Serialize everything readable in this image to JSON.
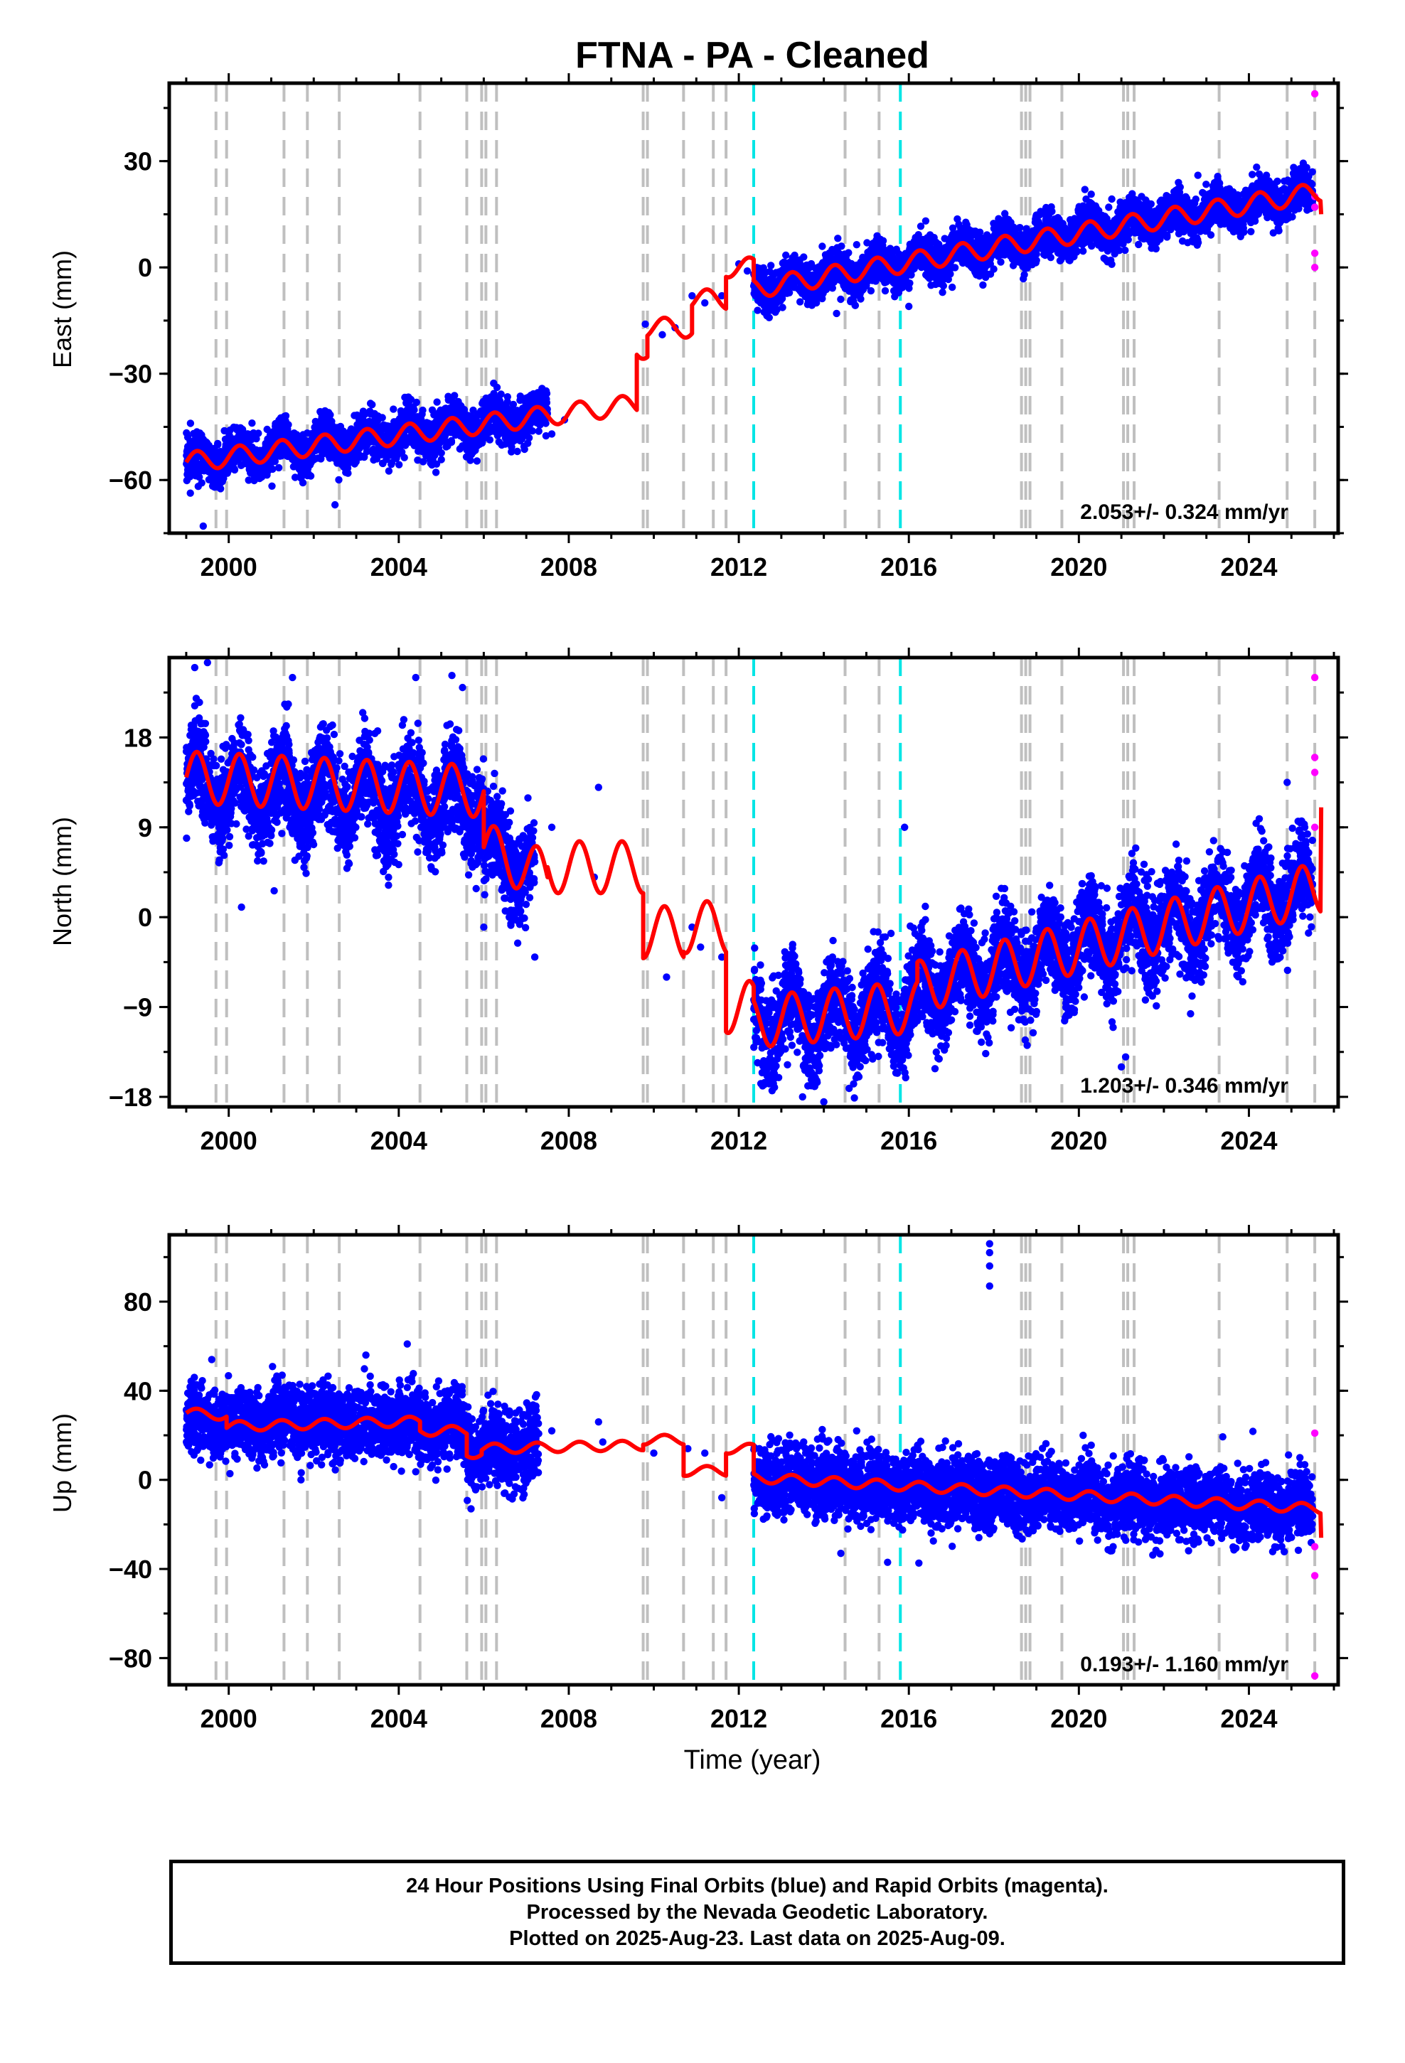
{
  "title": "FTNA  - PA - Cleaned",
  "xlabel": "Time (year)",
  "footer": {
    "line1": "24 Hour Positions Using Final Orbits (blue) and Rapid Orbits (magenta).",
    "line2": "Processed by the Nevada Geodetic Laboratory.",
    "line3": "Plotted on 2025-Aug-23. Last data on 2025-Aug-09."
  },
  "colors": {
    "final_points": "#0000ff",
    "rapid_points": "#ff00ff",
    "model_line": "#ff0000",
    "equipment_change_lines": "#bfbfbf",
    "earthquake_lines": "#00e5e5",
    "frame": "#000000"
  },
  "chart_data": [
    {
      "type": "scatter",
      "panel": "east",
      "ylabel": "East (mm)",
      "rate_label": "2.053+/- 0.324 mm/yr",
      "xlim": [
        1998.6,
        2026.1
      ],
      "ylim": [
        -75,
        52
      ],
      "x_ticks": [
        2000,
        2004,
        2008,
        2012,
        2016,
        2020,
        2024
      ],
      "y_ticks": [
        -60,
        -30,
        0,
        30
      ],
      "y_tick_labels": [
        "−60",
        "−30",
        "0",
        "30"
      ],
      "equipment_changes": [
        1999.7,
        1999.95,
        2001.3,
        2001.85,
        2002.6,
        2004.5,
        2005.6,
        2005.95,
        2006.05,
        2006.3,
        2009.75,
        2009.85,
        2010.7,
        2011.4,
        2011.7,
        2014.5,
        2015.3,
        2018.65,
        2018.75,
        2018.85,
        2019.6,
        2021.05,
        2021.15,
        2021.3,
        2023.3,
        2024.9,
        2025.55
      ],
      "earthquakes": [
        2012.35,
        2015.8
      ],
      "final_segments": [
        {
          "start": 1999.0,
          "end": 2007.5,
          "y0": -55,
          "rate": 1.55,
          "amp": 2.8,
          "noise": 3.0,
          "n": 2600,
          "outliers": [
            [
              1999.1,
              -44
            ],
            [
              1999.4,
              -73
            ],
            [
              2002.5,
              -67
            ],
            [
              2004.9,
              -38
            ]
          ]
        },
        {
          "start": 2012.35,
          "end": 2025.5,
          "y0": -6,
          "rate": 2.05,
          "amp": 2.6,
          "noise": 2.8,
          "n": 4200,
          "outliers": [
            [
              2014.3,
              -13
            ],
            [
              2016.0,
              -11
            ],
            [
              2022.8,
              26
            ]
          ]
        }
      ],
      "sparse_points": [
        [
          2007.6,
          -47
        ],
        [
          2007.9,
          -43
        ],
        [
          2009.8,
          -16
        ],
        [
          2010.2,
          -19
        ],
        [
          2010.5,
          -17
        ],
        [
          2010.9,
          -8
        ],
        [
          2011.2,
          -10
        ],
        [
          2011.6,
          -8
        ],
        [
          2012.0,
          1
        ],
        [
          2012.2,
          -1
        ]
      ],
      "rapid_points": [
        [
          2025.55,
          49
        ],
        [
          2025.55,
          20
        ],
        [
          2025.55,
          17
        ],
        [
          2025.55,
          4
        ],
        [
          2025.55,
          0
        ]
      ],
      "model": {
        "pieces": [
          {
            "start": 1999.0,
            "end": 2009.6,
            "y0": -55,
            "rate": 1.55
          },
          {
            "start": 2009.6,
            "end": 2009.85,
            "y0": -23,
            "rate": 0
          },
          {
            "start": 2009.85,
            "end": 2010.9,
            "y0": -17,
            "rate": 0
          },
          {
            "start": 2010.9,
            "end": 2011.7,
            "y0": -9,
            "rate": 0
          },
          {
            "start": 2011.7,
            "end": 2012.35,
            "y0": 0,
            "rate": 0
          },
          {
            "start": 2012.35,
            "end": 2025.7,
            "y0": -6,
            "rate": 2.05
          }
        ],
        "amp": 2.8,
        "end_value": 15
      }
    },
    {
      "type": "scatter",
      "panel": "north",
      "ylabel": "North (mm)",
      "rate_label": "1.203+/- 0.346 mm/yr",
      "xlim": [
        1998.6,
        2026.1
      ],
      "ylim": [
        -19,
        26
      ],
      "x_ticks": [
        2000,
        2004,
        2008,
        2012,
        2016,
        2020,
        2024
      ],
      "y_ticks": [
        -18,
        -9,
        0,
        9,
        18
      ],
      "y_tick_labels": [
        "−18",
        "−9",
        "0",
        "9",
        "18"
      ],
      "equipment_changes": [
        1999.7,
        1999.95,
        2001.3,
        2001.85,
        2002.6,
        2004.5,
        2005.6,
        2005.95,
        2006.05,
        2006.3,
        2009.75,
        2009.85,
        2010.7,
        2011.4,
        2011.7,
        2014.5,
        2015.3,
        2018.65,
        2018.75,
        2018.85,
        2019.6,
        2021.05,
        2021.15,
        2021.3,
        2023.3,
        2024.9,
        2025.55
      ],
      "earthquakes": [
        2012.35,
        2015.8
      ],
      "final_segments": [
        {
          "start": 1999.0,
          "end": 2006.0,
          "y0": 13,
          "rate": -0.2,
          "amp": 2.6,
          "noise": 2.3,
          "n": 2300,
          "outliers": [
            [
              1999.2,
              25
            ],
            [
              1999.5,
              25.5
            ],
            [
              2000.3,
              1
            ],
            [
              2001.5,
              24
            ],
            [
              2004.4,
              24
            ],
            [
              2005.5,
              23
            ]
          ]
        },
        {
          "start": 2006.0,
          "end": 2007.2,
          "y0": 7,
          "rate": -2,
          "amp": 2.0,
          "noise": 2.3,
          "n": 350,
          "outliers": [
            [
              2006.0,
              -1
            ],
            [
              2007.2,
              -4
            ]
          ]
        },
        {
          "start": 2012.35,
          "end": 2016.2,
          "y0": -10.5,
          "rate": 0.4,
          "amp": 2.5,
          "noise": 2.3,
          "n": 1200,
          "outliers": [
            [
              2013.5,
              -18
            ],
            [
              2014.0,
              -18.5
            ],
            [
              2015.9,
              9
            ]
          ]
        },
        {
          "start": 2016.2,
          "end": 2025.5,
          "y0": -7,
          "rate": 1.05,
          "amp": 2.5,
          "noise": 2.3,
          "n": 3000,
          "outliers": [
            [
              2021.0,
              -15
            ],
            [
              2021.1,
              -14
            ],
            [
              2024.9,
              13.5
            ]
          ]
        }
      ],
      "sparse_points": [
        [
          2007.6,
          9
        ],
        [
          2008.6,
          4
        ],
        [
          2008.7,
          13
        ],
        [
          2010.3,
          -6
        ],
        [
          2010.9,
          -1
        ],
        [
          2011.1,
          -3
        ],
        [
          2011.6,
          -4
        ]
      ],
      "rapid_points": [
        [
          2025.55,
          24
        ],
        [
          2025.55,
          16
        ],
        [
          2025.55,
          14.5
        ],
        [
          2025.55,
          9
        ]
      ],
      "model": {
        "pieces": [
          {
            "start": 1999.0,
            "end": 2006.0,
            "y0": 14,
            "rate": -0.2
          },
          {
            "start": 2006.0,
            "end": 2007.5,
            "y0": 7,
            "rate": -2
          },
          {
            "start": 2007.5,
            "end": 2009.75,
            "y0": 5,
            "rate": 0
          },
          {
            "start": 2009.75,
            "end": 2010.7,
            "y0": -1.5,
            "rate": 0
          },
          {
            "start": 2010.7,
            "end": 2011.7,
            "y0": -1,
            "rate": 0
          },
          {
            "start": 2011.7,
            "end": 2012.35,
            "y0": -9,
            "rate": 0
          },
          {
            "start": 2012.35,
            "end": 2016.2,
            "y0": -10.5,
            "rate": 0.4
          },
          {
            "start": 2016.2,
            "end": 2025.7,
            "y0": -7,
            "rate": 1.05
          }
        ],
        "amp": 2.6,
        "end_value": 11
      }
    },
    {
      "type": "scatter",
      "panel": "up",
      "ylabel": "Up (mm)",
      "rate_label": "0.193+/- 1.160 mm/yr",
      "xlim": [
        1998.6,
        2026.1
      ],
      "ylim": [
        -92,
        110
      ],
      "x_ticks": [
        2000,
        2004,
        2008,
        2012,
        2016,
        2020,
        2024
      ],
      "y_ticks": [
        -80,
        -40,
        0,
        40,
        80
      ],
      "y_tick_labels": [
        "−80",
        "−40",
        "0",
        "40",
        "80"
      ],
      "equipment_changes": [
        1999.7,
        1999.95,
        2001.3,
        2001.85,
        2002.6,
        2004.5,
        2005.6,
        2005.95,
        2006.05,
        2006.3,
        2009.75,
        2009.85,
        2010.7,
        2011.4,
        2011.7,
        2014.5,
        2015.3,
        2018.65,
        2018.75,
        2018.85,
        2019.6,
        2021.05,
        2021.15,
        2021.3,
        2023.3,
        2024.9,
        2025.55
      ],
      "earthquakes": [
        2012.35,
        2015.8
      ],
      "final_segments": [
        {
          "start": 1999.0,
          "end": 2005.6,
          "y0": 26,
          "rate": -0.2,
          "amp": 2.5,
          "noise": 7.5,
          "n": 2200,
          "outliers": [
            [
              1999.6,
              54
            ],
            [
              2004.2,
              61
            ],
            [
              2001.7,
              0
            ]
          ]
        },
        {
          "start": 2005.6,
          "end": 2007.3,
          "y0": 14,
          "rate": 0,
          "amp": 2.0,
          "noise": 8.5,
          "n": 600,
          "outliers": [
            [
              2005.7,
              -13
            ],
            [
              2006.1,
              38
            ]
          ]
        },
        {
          "start": 2012.35,
          "end": 2025.5,
          "y0": 0,
          "rate": -1.0,
          "amp": 2.5,
          "noise": 7.5,
          "n": 4200,
          "outliers": [
            [
              2014.4,
              -33
            ],
            [
              2015.5,
              -37
            ],
            [
              2020.1,
              20
            ]
          ]
        }
      ],
      "sparse_points": [
        [
          2007.6,
          22
        ],
        [
          2008.7,
          26
        ],
        [
          2008.8,
          17
        ],
        [
          2010.0,
          12
        ],
        [
          2010.8,
          14
        ],
        [
          2011.2,
          12
        ],
        [
          2011.6,
          -8
        ],
        [
          2017.9,
          106
        ],
        [
          2017.9,
          102
        ],
        [
          2017.9,
          96
        ],
        [
          2017.9,
          87
        ]
      ],
      "rapid_points": [
        [
          2025.55,
          21
        ],
        [
          2025.55,
          -30
        ],
        [
          2025.55,
          -43
        ],
        [
          2025.55,
          -88
        ]
      ],
      "model": {
        "pieces": [
          {
            "start": 1999.0,
            "end": 1999.95,
            "y0": 30,
            "rate": -1
          },
          {
            "start": 1999.95,
            "end": 2004.5,
            "y0": 24,
            "rate": 0.5
          },
          {
            "start": 2004.5,
            "end": 2005.6,
            "y0": 22,
            "rate": 0
          },
          {
            "start": 2005.6,
            "end": 2005.95,
            "y0": 12,
            "rate": 0
          },
          {
            "start": 2005.95,
            "end": 2009.75,
            "y0": 14,
            "rate": 0.4
          },
          {
            "start": 2009.75,
            "end": 2010.7,
            "y0": 18,
            "rate": 0
          },
          {
            "start": 2010.7,
            "end": 2011.7,
            "y0": 4,
            "rate": 0
          },
          {
            "start": 2011.7,
            "end": 2012.35,
            "y0": 14,
            "rate": 0
          },
          {
            "start": 2012.35,
            "end": 2025.7,
            "y0": 1,
            "rate": -1.05
          }
        ],
        "amp": 2.2,
        "end_value": -26
      }
    }
  ]
}
